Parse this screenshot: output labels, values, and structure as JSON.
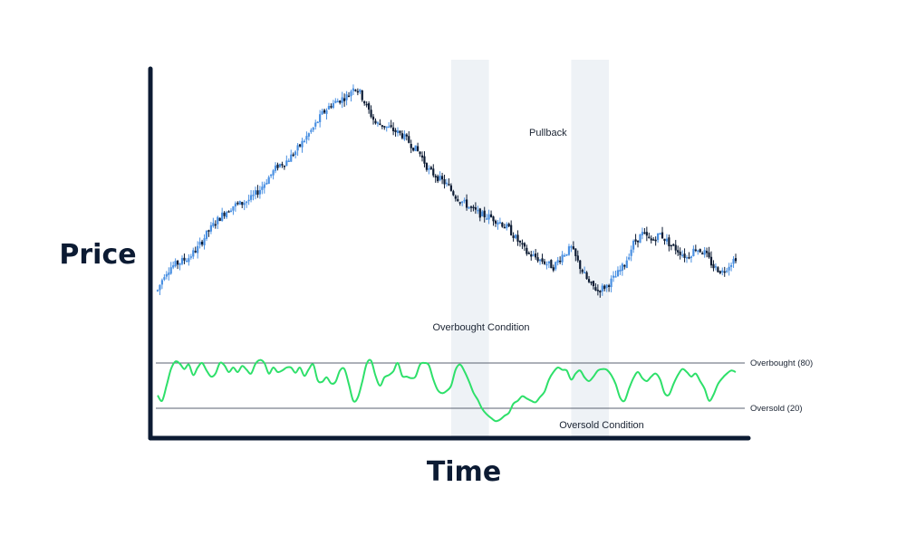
{
  "chart_data": {
    "type": "candlestick-with-oscillator",
    "xlabel": "Time",
    "ylabel": "Price",
    "colors": {
      "up": "#4a90e2",
      "down": "#0c1b33",
      "oscillator": "#2ee06a",
      "axis": "#0c1b33",
      "highlight": "#eef2f6",
      "level_line": "#5a6270"
    },
    "price": {
      "unit_note": "relative price index",
      "anchors": [
        [
          0,
          12
        ],
        [
          3,
          19
        ],
        [
          6,
          22
        ],
        [
          10,
          24
        ],
        [
          14,
          26
        ],
        [
          18,
          30
        ],
        [
          22,
          36
        ],
        [
          26,
          41
        ],
        [
          30,
          45
        ],
        [
          34,
          48
        ],
        [
          38,
          49
        ],
        [
          42,
          51
        ],
        [
          46,
          55
        ],
        [
          50,
          60
        ],
        [
          54,
          65
        ],
        [
          58,
          67
        ],
        [
          62,
          71
        ],
        [
          66,
          76
        ],
        [
          70,
          81
        ],
        [
          74,
          87
        ],
        [
          78,
          91
        ],
        [
          82,
          93
        ],
        [
          86,
          95
        ],
        [
          88,
          99
        ],
        [
          91,
          96
        ],
        [
          94,
          90
        ],
        [
          98,
          83
        ],
        [
          102,
          82
        ],
        [
          106,
          80
        ],
        [
          110,
          78
        ],
        [
          114,
          74
        ],
        [
          118,
          70
        ],
        [
          122,
          63
        ],
        [
          126,
          60
        ],
        [
          130,
          57
        ],
        [
          134,
          52
        ],
        [
          138,
          49
        ],
        [
          142,
          46
        ],
        [
          146,
          44
        ],
        [
          150,
          43
        ],
        [
          154,
          41
        ],
        [
          158,
          38
        ],
        [
          162,
          33
        ],
        [
          166,
          28
        ],
        [
          170,
          26
        ],
        [
          174,
          24
        ],
        [
          178,
          22
        ],
        [
          182,
          27
        ],
        [
          186,
          30
        ],
        [
          190,
          22
        ],
        [
          194,
          15
        ],
        [
          198,
          12
        ],
        [
          202,
          14
        ],
        [
          206,
          18
        ],
        [
          210,
          23
        ],
        [
          214,
          32
        ],
        [
          218,
          36
        ],
        [
          222,
          33
        ],
        [
          226,
          36
        ],
        [
          230,
          32
        ],
        [
          234,
          29
        ],
        [
          238,
          26
        ],
        [
          242,
          30
        ],
        [
          246,
          28
        ],
        [
          250,
          22
        ],
        [
          254,
          20
        ],
        [
          258,
          24
        ],
        [
          260,
          26
        ]
      ]
    },
    "oscillator": {
      "range": [
        0,
        100
      ],
      "overbought": 80,
      "oversold": 20,
      "overbought_label": "Overbought (80)",
      "oversold_label": "Oversold (20)",
      "points": [
        [
          0,
          37
        ],
        [
          2,
          30
        ],
        [
          4,
          50
        ],
        [
          6,
          72
        ],
        [
          8,
          82
        ],
        [
          10,
          79
        ],
        [
          12,
          72
        ],
        [
          14,
          78
        ],
        [
          16,
          64
        ],
        [
          18,
          74
        ],
        [
          20,
          80
        ],
        [
          22,
          70
        ],
        [
          24,
          62
        ],
        [
          26,
          66
        ],
        [
          28,
          80
        ],
        [
          30,
          77
        ],
        [
          32,
          68
        ],
        [
          34,
          74
        ],
        [
          36,
          68
        ],
        [
          38,
          76
        ],
        [
          40,
          71
        ],
        [
          42,
          66
        ],
        [
          44,
          79
        ],
        [
          46,
          84
        ],
        [
          48,
          80
        ],
        [
          50,
          66
        ],
        [
          52,
          74
        ],
        [
          54,
          68
        ],
        [
          56,
          70
        ],
        [
          58,
          74
        ],
        [
          60,
          74
        ],
        [
          62,
          67
        ],
        [
          64,
          74
        ],
        [
          66,
          63
        ],
        [
          68,
          72
        ],
        [
          70,
          78
        ],
        [
          72,
          57
        ],
        [
          74,
          55
        ],
        [
          76,
          61
        ],
        [
          78,
          53
        ],
        [
          80,
          55
        ],
        [
          82,
          70
        ],
        [
          84,
          72
        ],
        [
          86,
          52
        ],
        [
          88,
          30
        ],
        [
          90,
          34
        ],
        [
          92,
          55
        ],
        [
          94,
          79
        ],
        [
          96,
          83
        ],
        [
          98,
          63
        ],
        [
          100,
          50
        ],
        [
          102,
          61
        ],
        [
          104,
          64
        ],
        [
          106,
          69
        ],
        [
          108,
          80
        ],
        [
          110,
          63
        ],
        [
          112,
          62
        ],
        [
          114,
          60
        ],
        [
          116,
          62
        ],
        [
          118,
          78
        ],
        [
          120,
          80
        ],
        [
          122,
          77
        ],
        [
          124,
          58
        ],
        [
          126,
          44
        ],
        [
          128,
          40
        ],
        [
          130,
          43
        ],
        [
          132,
          50
        ],
        [
          134,
          71
        ],
        [
          136,
          78
        ],
        [
          138,
          69
        ],
        [
          140,
          56
        ],
        [
          142,
          41
        ],
        [
          144,
          31
        ],
        [
          146,
          19
        ],
        [
          148,
          12
        ],
        [
          150,
          7
        ],
        [
          152,
          3
        ],
        [
          154,
          5
        ],
        [
          156,
          10
        ],
        [
          158,
          14
        ],
        [
          160,
          26
        ],
        [
          162,
          30
        ],
        [
          164,
          36
        ],
        [
          166,
          33
        ],
        [
          168,
          30
        ],
        [
          170,
          28
        ],
        [
          172,
          35
        ],
        [
          174,
          42
        ],
        [
          176,
          58
        ],
        [
          178,
          68
        ],
        [
          180,
          74
        ],
        [
          182,
          71
        ],
        [
          184,
          70
        ],
        [
          186,
          58
        ],
        [
          188,
          66
        ],
        [
          190,
          70
        ],
        [
          192,
          61
        ],
        [
          194,
          56
        ],
        [
          196,
          62
        ],
        [
          198,
          70
        ],
        [
          200,
          72
        ],
        [
          202,
          71
        ],
        [
          204,
          64
        ],
        [
          206,
          52
        ],
        [
          208,
          34
        ],
        [
          210,
          30
        ],
        [
          212,
          46
        ],
        [
          214,
          60
        ],
        [
          216,
          68
        ],
        [
          218,
          60
        ],
        [
          220,
          56
        ],
        [
          222,
          62
        ],
        [
          224,
          66
        ],
        [
          226,
          58
        ],
        [
          228,
          40
        ],
        [
          230,
          38
        ],
        [
          232,
          52
        ],
        [
          234,
          64
        ],
        [
          236,
          72
        ],
        [
          238,
          68
        ],
        [
          240,
          62
        ],
        [
          242,
          66
        ],
        [
          244,
          56
        ],
        [
          246,
          46
        ],
        [
          248,
          30
        ],
        [
          250,
          38
        ],
        [
          252,
          52
        ],
        [
          254,
          60
        ],
        [
          256,
          66
        ],
        [
          258,
          70
        ],
        [
          260,
          68
        ]
      ]
    },
    "highlights": [
      {
        "name": "overbought-zone",
        "x_range": [
          132,
          149
        ]
      },
      {
        "name": "oversold-zone",
        "x_range": [
          186,
          203
        ]
      }
    ],
    "annotations": {
      "pullback": "Pullback",
      "overbought_condition": "Overbought Condition",
      "oversold_condition": "Oversold Condition"
    }
  }
}
